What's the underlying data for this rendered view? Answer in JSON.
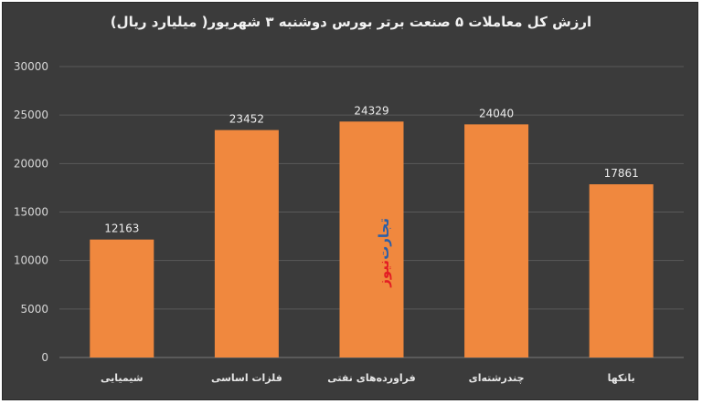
{
  "chart_data": {
    "type": "bar",
    "title": "ارزش کل معاملات ۵ صنعت برتر بورس دوشنبه ۳ شهریور( میلیارد ریال)",
    "categories": [
      "شیمیایی",
      "فلزات اساسی",
      "فراورده‌های نفتی",
      "چندرشته‌ای",
      "بانکها"
    ],
    "values": [
      12163,
      23452,
      24329,
      24040,
      17861
    ],
    "data_labels": [
      "12163",
      "23452",
      "24329",
      "24040",
      "17861"
    ],
    "ylim": [
      0,
      30000
    ],
    "yticks": [
      0,
      5000,
      10000,
      15000,
      20000,
      25000,
      30000
    ],
    "grid": true,
    "legend": "none",
    "bar_color": "#f0883e"
  },
  "colors": {
    "background": "#3b3b3b",
    "grid": "#5a5a5a",
    "watermark_primary": "#e31e24",
    "watermark_secondary": "#2b5fa8"
  },
  "watermark": {
    "top_word": "تجارت",
    "bottom_word": "نیوز"
  }
}
